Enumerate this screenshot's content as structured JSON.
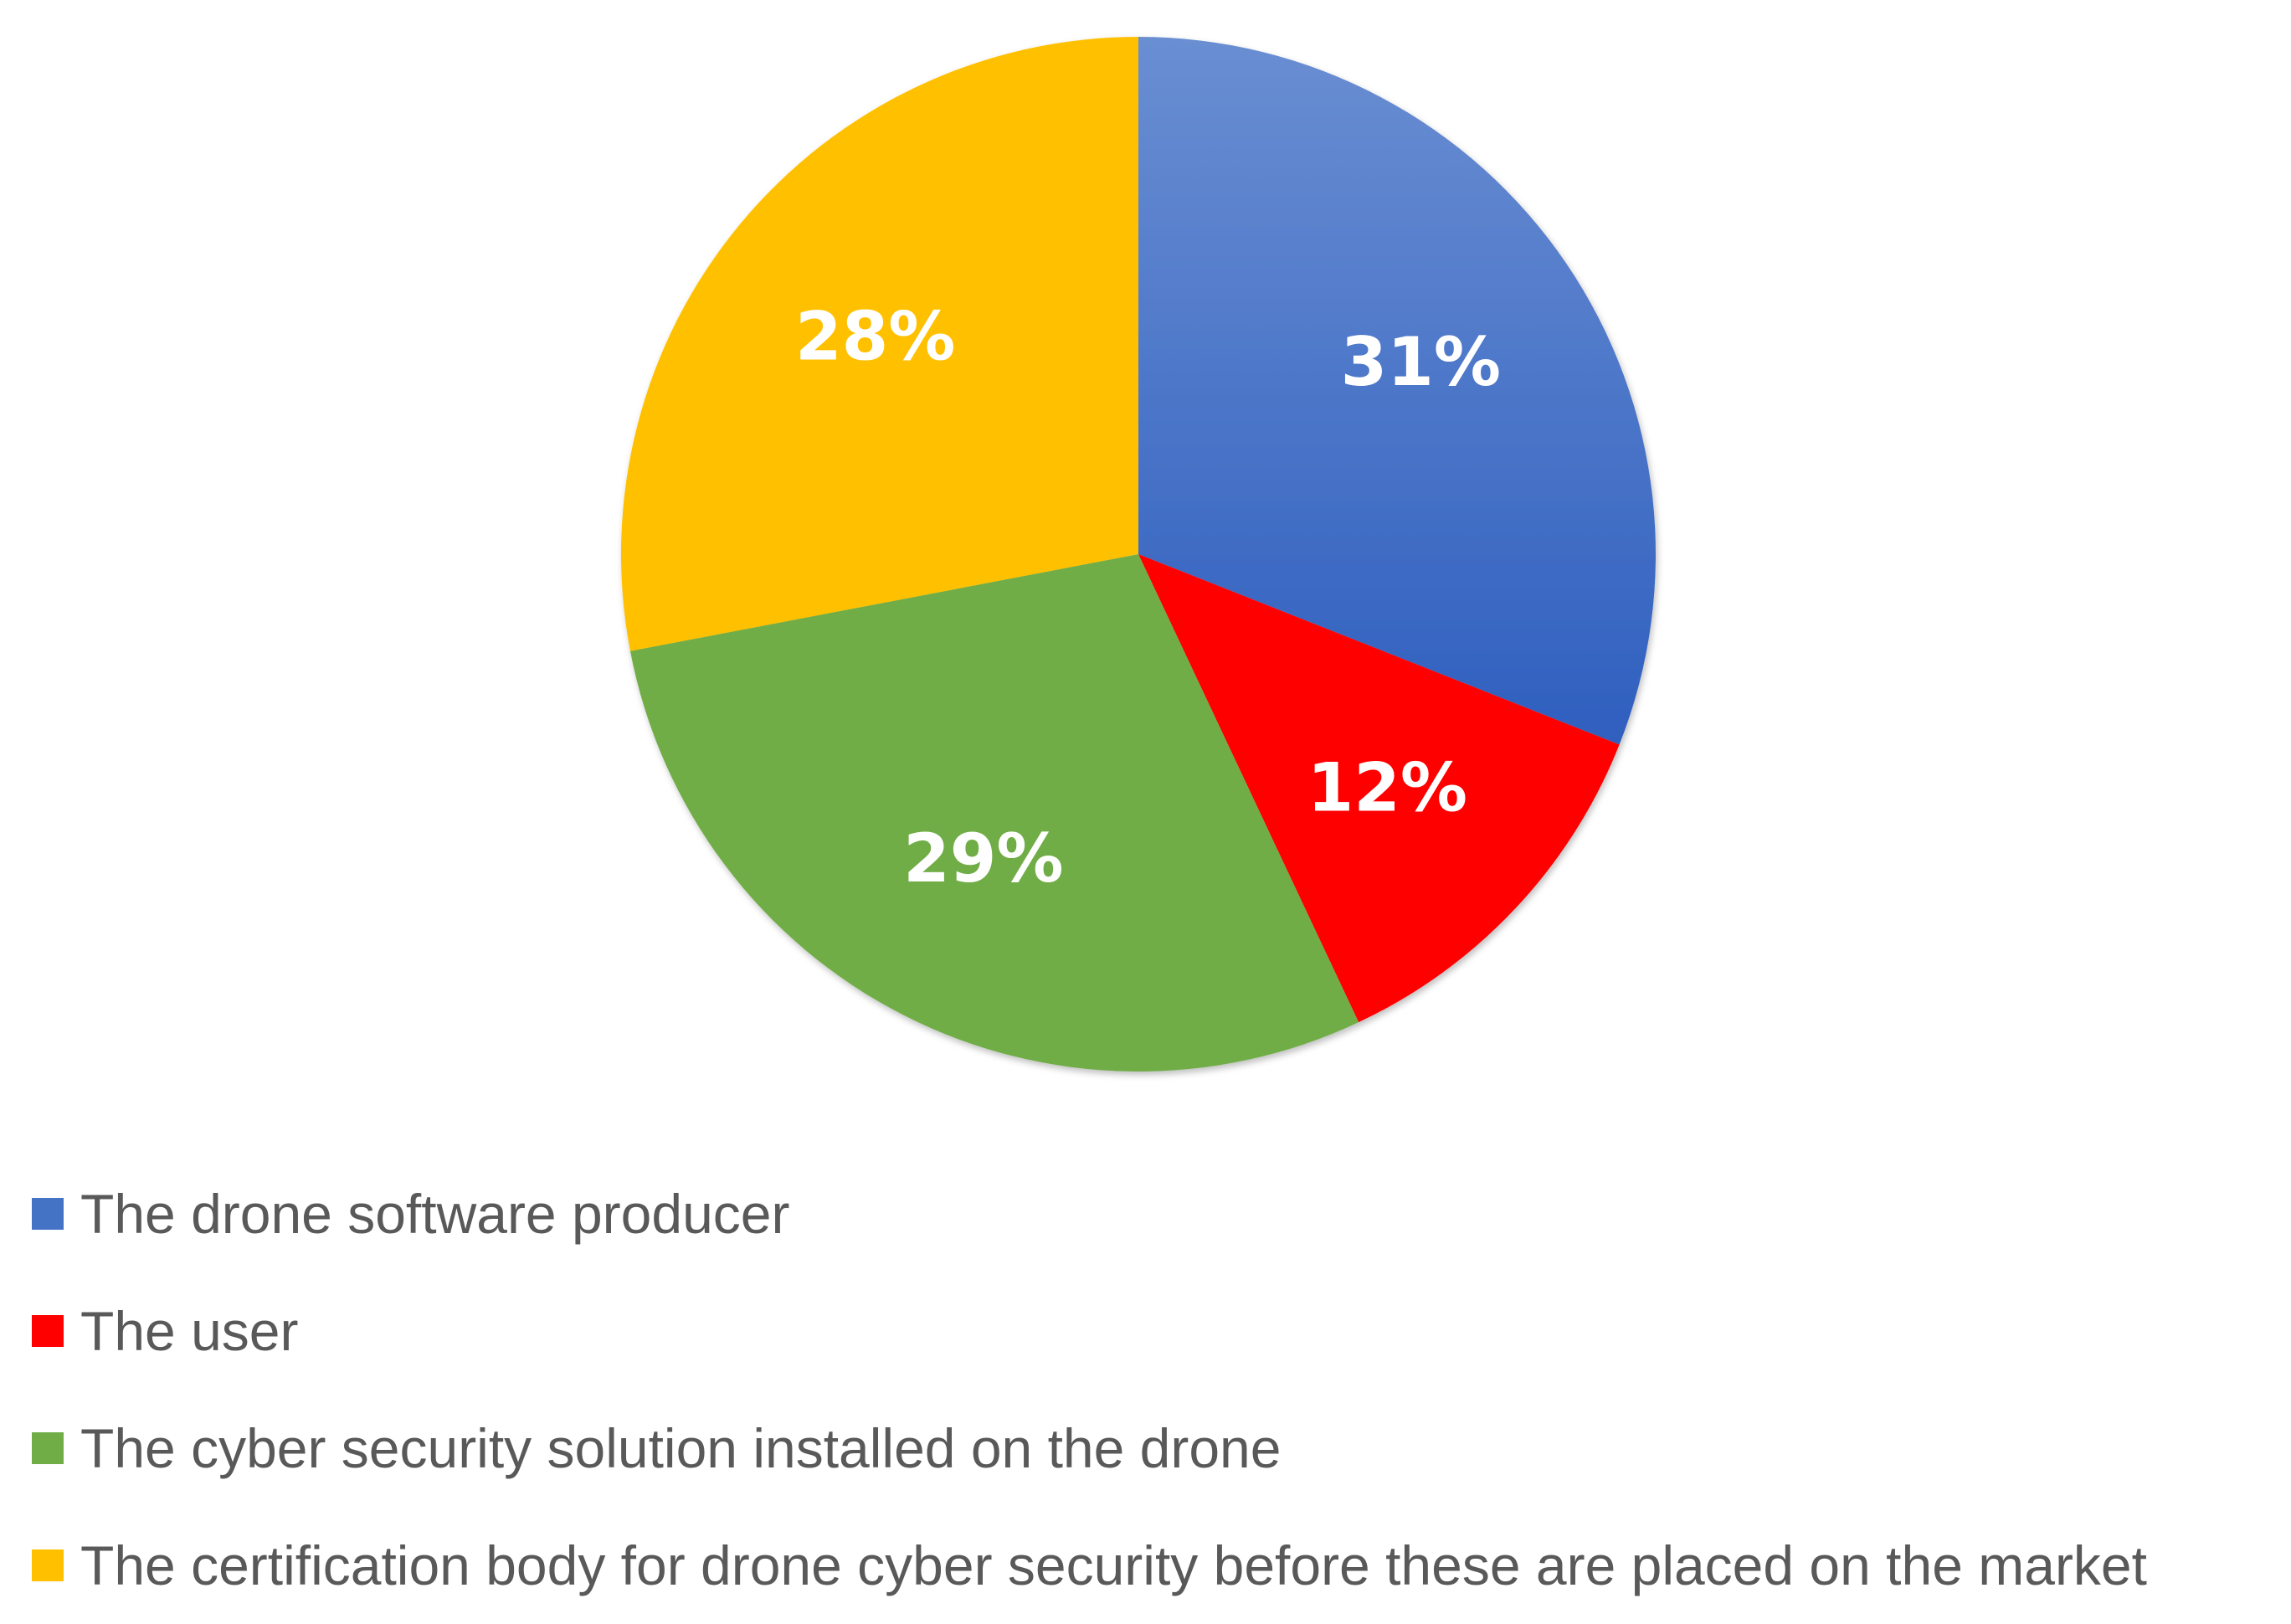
{
  "chart_data": {
    "type": "pie",
    "title": "",
    "start_angle": "12 o'clock, clockwise",
    "legend_position": "bottom",
    "slices": [
      {
        "name": "The drone software producer",
        "value": 31,
        "label": "31%",
        "color": "#4472C4"
      },
      {
        "name": "The user",
        "value": 12,
        "label": "12%",
        "color": "#FF0000"
      },
      {
        "name": "The cyber security solution installed on the drone",
        "value": 29,
        "label": "29%",
        "color": "#70AD47"
      },
      {
        "name": "The certification body for drone cyber security before these are placed on the market",
        "value": 28,
        "label": "28%",
        "color": "#FFC000"
      }
    ]
  }
}
